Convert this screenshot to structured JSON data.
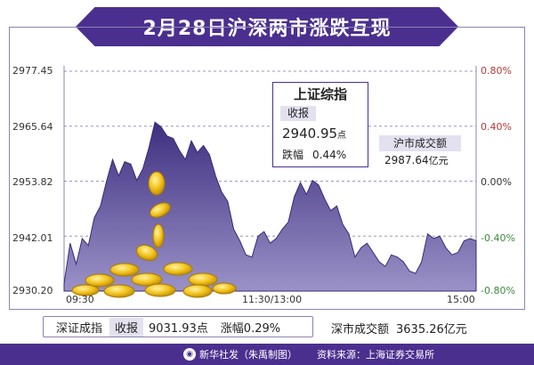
{
  "header": {
    "title": "2月28日沪深两市涨跌互现"
  },
  "chart_data": {
    "type": "area",
    "title": "",
    "xlabel": "",
    "ylabel": "",
    "x_ticks": [
      "09:30",
      "11:30/13:00",
      "15:00"
    ],
    "y_left_ticks": [
      "2977.45",
      "2965.64",
      "2953.82",
      "2942.01",
      "2930.20"
    ],
    "y_right_ticks": [
      "0.80%",
      "0.40%",
      "0.00%",
      "-0.40%",
      "-0.80%"
    ],
    "ylim": [
      2930.2,
      2977.45
    ],
    "grid": "horizontal-dashed",
    "series": [
      {
        "values": [
          2931.8,
          2940.5,
          2936.0,
          2941.5,
          2940.0,
          2946.0,
          2948.5,
          2953.8,
          2958.5,
          2955.0,
          2958.0,
          2957.5,
          2954.0,
          2956.5,
          2961.0,
          2966.5,
          2965.5,
          2963.5,
          2963.0,
          2960.5,
          2958.5,
          2962.5,
          2960.0,
          2961.5,
          2959.5,
          2955.0,
          2951.5,
          2949.5,
          2943.5,
          2941.0,
          2938.0,
          2937.5,
          2942.0,
          2943.0,
          2940.5,
          2941.5,
          2943.5,
          2945.0,
          2950.5,
          2953.5,
          2951.0,
          2954.0,
          2953.0,
          2950.0,
          2947.5,
          2948.5,
          2944.5,
          2942.5,
          2937.5,
          2939.5,
          2940.5,
          2938.5,
          2936.5,
          2935.5,
          2938.0,
          2937.5,
          2936.5,
          2934.5,
          2934.0,
          2936.5,
          2942.5,
          2941.5,
          2942.0,
          2939.5,
          2938.0,
          2938.5,
          2941.0,
          2941.5,
          2941.0
        ]
      }
    ]
  },
  "shanghai": {
    "name": "上证综指",
    "tag": "收报",
    "close": "2940.95",
    "unit": "点",
    "change_label": "跌幅",
    "change": "0.44%",
    "volume_label": "沪市成交额",
    "volume": "2987.64",
    "volume_unit": "亿元"
  },
  "shenzhen": {
    "name": "深证成指",
    "tag": "收报",
    "close": "9031.93点",
    "change": "涨幅0.29%",
    "volume_label": "深市成交额",
    "volume": "3635.26亿元"
  },
  "footer": {
    "credit": "新华社发（朱禹制图）",
    "source": "资料来源：上海证券交易所"
  },
  "colors": {
    "area": "#4b3f8f",
    "banner": "#4b2f8f",
    "up": "#b33a3a",
    "down": "#3d8a3d"
  }
}
